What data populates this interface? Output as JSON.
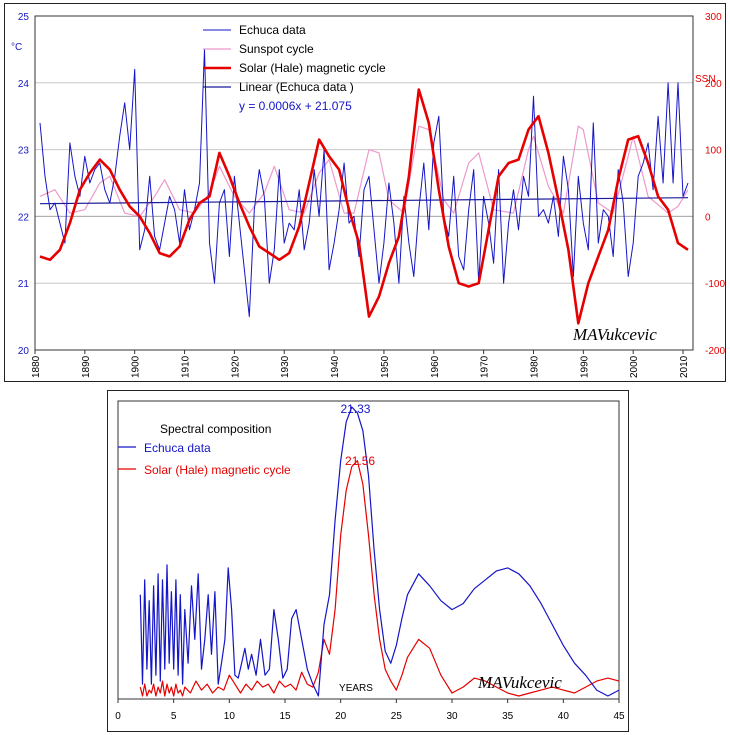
{
  "chart_data": [
    {
      "type": "line",
      "left_unit": "°C",
      "right_unit": "SSN",
      "xlim": [
        1880,
        2012
      ],
      "x_ticks": [
        "1880",
        "1890",
        "1900",
        "1910",
        "1920",
        "1930",
        "1940",
        "1950",
        "1960",
        "1970",
        "1980",
        "1990",
        "2000",
        "2010"
      ],
      "ylim_left": [
        20,
        25
      ],
      "y_ticks_left": [
        "20",
        "21",
        "22",
        "23",
        "24",
        "25"
      ],
      "ylim_right": [
        -200,
        300
      ],
      "y_ticks_right": [
        "-200",
        "-100",
        "0",
        "100",
        "200",
        "300"
      ],
      "legend": {
        "placement": "top-center",
        "entries": [
          "Echuca data",
          "Sunspot cycle",
          "Solar (Hale) magnetic cycle",
          "Linear (Echuca data )"
        ],
        "equation": "y = 0.0006x + 21.075"
      },
      "signature": "MAVukcevic",
      "colors": {
        "echuca": "#1515c8",
        "sunspot": "#ee99cc",
        "hale": "#e60000",
        "linear": "#1a1a9a",
        "right_axis": "#e60000"
      },
      "series": [
        {
          "name": "Echuca data",
          "axis": "left",
          "x": [
            1881,
            1882,
            1883,
            1884,
            1885,
            1886,
            1887,
            1888,
            1889,
            1890,
            1891,
            1892,
            1893,
            1894,
            1895,
            1896,
            1897,
            1898,
            1899,
            1900,
            1901,
            1902,
            1903,
            1904,
            1905,
            1906,
            1907,
            1908,
            1909,
            1910,
            1911,
            1912,
            1913,
            1914,
            1915,
            1916,
            1917,
            1918,
            1919,
            1920,
            1921,
            1922,
            1923,
            1924,
            1925,
            1926,
            1927,
            1928,
            1929,
            1930,
            1931,
            1932,
            1933,
            1934,
            1935,
            1936,
            1937,
            1938,
            1939,
            1940,
            1941,
            1942,
            1943,
            1944,
            1945,
            1946,
            1947,
            1948,
            1949,
            1950,
            1951,
            1952,
            1953,
            1954,
            1955,
            1956,
            1957,
            1958,
            1959,
            1960,
            1961,
            1962,
            1963,
            1964,
            1965,
            1966,
            1967,
            1968,
            1969,
            1970,
            1971,
            1972,
            1973,
            1974,
            1975,
            1976,
            1977,
            1978,
            1979,
            1980,
            1981,
            1982,
            1983,
            1984,
            1985,
            1986,
            1987,
            1988,
            1989,
            1990,
            1991,
            1992,
            1993,
            1994,
            1995,
            1996,
            1997,
            1998,
            1999,
            2000,
            2001,
            2002,
            2003,
            2004,
            2005,
            2006,
            2007,
            2008,
            2009,
            2010,
            2011
          ],
          "y": [
            23.4,
            22.6,
            22.1,
            22.2,
            21.9,
            21.6,
            23.1,
            22.6,
            22.3,
            22.9,
            22.5,
            22.7,
            22.8,
            22.4,
            22.2,
            22.6,
            23.2,
            23.7,
            23.0,
            24.2,
            21.5,
            21.8,
            22.6,
            21.7,
            21.5,
            21.9,
            22.3,
            22.1,
            21.6,
            22.4,
            21.8,
            22.1,
            22.5,
            24.5,
            21.6,
            21.0,
            22.2,
            22.4,
            21.4,
            22.6,
            21.9,
            21.2,
            20.5,
            22.1,
            22.7,
            22.3,
            21.0,
            21.5,
            22.7,
            21.6,
            21.9,
            21.8,
            22.4,
            21.5,
            21.9,
            22.7,
            22.0,
            23.0,
            21.2,
            21.6,
            22.1,
            22.8,
            21.9,
            22.0,
            21.4,
            22.4,
            22.6,
            21.8,
            21.0,
            21.6,
            22.5,
            21.9,
            21.0,
            22.3,
            21.6,
            21.1,
            22.1,
            22.8,
            21.8,
            23.1,
            23.5,
            22.0,
            21.7,
            22.6,
            21.4,
            21.2,
            22.1,
            22.7,
            21.0,
            22.3,
            21.9,
            21.3,
            22.7,
            21.0,
            21.9,
            22.4,
            21.8,
            22.6,
            22.3,
            23.8,
            22.0,
            22.1,
            21.9,
            22.3,
            21.7,
            22.9,
            22.4,
            21.1,
            22.6,
            21.9,
            21.5,
            23.4,
            21.6,
            22.1,
            22.0,
            21.4,
            22.7,
            22.2,
            21.1,
            21.6,
            22.6,
            22.8,
            23.1,
            22.4,
            23.5,
            22.5,
            24.0,
            22.5,
            24.0,
            22.3,
            22.5
          ]
        },
        {
          "name": "Sunspot cycle",
          "axis": "right",
          "x": [
            1881,
            1884,
            1887,
            1890,
            1893,
            1895,
            1898,
            1901,
            1904,
            1906,
            1909,
            1912,
            1915,
            1917,
            1920,
            1923,
            1926,
            1928,
            1931,
            1934,
            1937,
            1939,
            1942,
            1944,
            1947,
            1949,
            1951,
            1954,
            1957,
            1959,
            1962,
            1964,
            1967,
            1969,
            1972,
            1976,
            1979,
            1980,
            1983,
            1986,
            1989,
            1990,
            1993,
            1996,
            1999,
            2000,
            2003,
            2007,
            2009,
            2011
          ],
          "x_description": "year",
          "y": [
            30,
            40,
            5,
            10,
            50,
            60,
            5,
            0,
            30,
            55,
            10,
            5,
            35,
            75,
            30,
            5,
            35,
            75,
            10,
            5,
            65,
            85,
            5,
            5,
            100,
            95,
            25,
            5,
            135,
            130,
            25,
            5,
            80,
            95,
            10,
            5,
            100,
            120,
            45,
            5,
            135,
            130,
            20,
            5,
            90,
            120,
            30,
            5,
            15,
            40
          ]
        },
        {
          "name": "Solar (Hale) magnetic cycle",
          "axis": "right",
          "x": [
            1881,
            1883,
            1885,
            1887,
            1889,
            1891,
            1893,
            1895,
            1897,
            1899,
            1901,
            1903,
            1905,
            1907,
            1909,
            1911,
            1913,
            1915,
            1917,
            1919,
            1921,
            1923,
            1925,
            1927,
            1929,
            1931,
            1933,
            1935,
            1937,
            1939,
            1941,
            1943,
            1945,
            1947,
            1949,
            1951,
            1953,
            1955,
            1957,
            1959,
            1961,
            1963,
            1965,
            1967,
            1969,
            1971,
            1973,
            1975,
            1977,
            1979,
            1981,
            1983,
            1985,
            1987,
            1989,
            1991,
            1993,
            1995,
            1997,
            1999,
            2001,
            2003,
            2005,
            2007,
            2009,
            2011
          ],
          "y": [
            -60,
            -65,
            -50,
            -10,
            40,
            65,
            85,
            70,
            40,
            15,
            0,
            -25,
            -55,
            -60,
            -45,
            -5,
            20,
            30,
            95,
            60,
            20,
            -15,
            -45,
            -55,
            -65,
            -55,
            -15,
            50,
            115,
            90,
            70,
            10,
            -40,
            -150,
            -120,
            -70,
            -30,
            60,
            190,
            140,
            40,
            -45,
            -100,
            -105,
            -100,
            -20,
            60,
            80,
            85,
            130,
            150,
            95,
            25,
            -50,
            -160,
            -100,
            -60,
            -20,
            55,
            115,
            120,
            80,
            30,
            10,
            -40,
            -50
          ]
        },
        {
          "name": "Linear (Echuca data )",
          "axis": "left",
          "x": [
            1881,
            2011
          ],
          "y": [
            22.19,
            22.28
          ]
        }
      ]
    },
    {
      "type": "line",
      "title": "Spectral composition",
      "xlabel": "YEARS",
      "xlim": [
        0,
        45
      ],
      "x_ticks": [
        "0",
        "5",
        "10",
        "15",
        "20",
        "25",
        "30",
        "35",
        "40",
        "45"
      ],
      "ylim": [
        0,
        1
      ],
      "signature": "MAVukcevic",
      "annotations": [
        {
          "text": "21.33",
          "x": 21.33,
          "series": "Echuca data"
        },
        {
          "text": "21.56",
          "x": 21.56,
          "series": "Solar (Hale) magnetic cycle"
        }
      ],
      "colors": {
        "echuca": "#1515c8",
        "hale": "#e60000",
        "title": "#000000"
      },
      "series": [
        {
          "name": "Echuca data",
          "x": [
            2,
            2.2,
            2.4,
            2.6,
            2.8,
            3,
            3.2,
            3.4,
            3.6,
            3.8,
            4,
            4.2,
            4.4,
            4.6,
            4.8,
            5,
            5.2,
            5.4,
            5.6,
            5.8,
            6,
            6.3,
            6.6,
            6.9,
            7.2,
            7.5,
            7.8,
            8.1,
            8.4,
            8.7,
            9,
            9.3,
            9.6,
            9.9,
            10.2,
            10.5,
            10.8,
            11.1,
            11.4,
            11.7,
            12,
            12.4,
            12.8,
            13.2,
            13.6,
            14,
            14.4,
            14.8,
            15.2,
            15.6,
            16,
            16.5,
            17,
            17.5,
            18,
            18.5,
            19,
            19.5,
            20,
            20.5,
            21,
            21.5,
            22,
            22.5,
            23,
            23.5,
            24,
            24.5,
            25,
            25.5,
            26,
            27,
            28,
            29,
            30,
            31,
            32,
            33,
            34,
            35,
            36,
            37,
            38,
            39,
            40,
            41,
            42,
            43,
            44,
            45
          ],
          "y": [
            0.35,
            0.05,
            0.4,
            0.1,
            0.33,
            0.05,
            0.38,
            0.08,
            0.42,
            0.06,
            0.4,
            0.1,
            0.45,
            0.12,
            0.36,
            0.1,
            0.4,
            0.08,
            0.35,
            0.05,
            0.3,
            0.12,
            0.38,
            0.2,
            0.42,
            0.1,
            0.2,
            0.35,
            0.15,
            0.36,
            0.05,
            0.12,
            0.2,
            0.44,
            0.3,
            0.08,
            0.07,
            0.12,
            0.17,
            0.1,
            0.15,
            0.08,
            0.2,
            0.08,
            0.1,
            0.3,
            0.2,
            0.07,
            0.1,
            0.27,
            0.3,
            0.2,
            0.1,
            0.05,
            0.01,
            0.25,
            0.35,
            0.6,
            0.8,
            0.93,
            0.98,
            0.96,
            0.9,
            0.75,
            0.5,
            0.3,
            0.16,
            0.12,
            0.18,
            0.27,
            0.35,
            0.42,
            0.38,
            0.33,
            0.3,
            0.32,
            0.37,
            0.4,
            0.43,
            0.44,
            0.42,
            0.38,
            0.32,
            0.25,
            0.18,
            0.12,
            0.08,
            0.03,
            0.01,
            0.03
          ]
        },
        {
          "name": "Solar (Hale) magnetic cycle",
          "x": [
            2,
            2.2,
            2.4,
            2.6,
            2.8,
            3,
            3.2,
            3.4,
            3.6,
            3.8,
            4,
            4.2,
            4.4,
            4.6,
            4.8,
            5,
            5.2,
            5.4,
            5.6,
            5.8,
            6,
            6.5,
            7,
            7.5,
            8,
            8.5,
            9,
            9.5,
            10,
            10.5,
            11,
            11.5,
            12,
            12.5,
            13,
            13.5,
            14,
            14.5,
            15,
            15.5,
            16,
            16.5,
            17,
            17.5,
            18,
            18.5,
            19,
            19.5,
            20,
            20.5,
            21,
            21.5,
            22,
            22.5,
            23,
            23.5,
            24,
            24.5,
            25,
            25.5,
            26,
            27,
            28,
            29,
            30,
            31,
            32,
            33,
            34,
            35,
            36,
            37,
            38,
            39,
            40,
            41,
            42,
            43,
            44,
            45
          ],
          "y": [
            0.04,
            0.01,
            0.05,
            0.01,
            0.03,
            0.02,
            0.05,
            0.01,
            0.04,
            0.02,
            0.06,
            0.01,
            0.05,
            0.02,
            0.04,
            0.01,
            0.05,
            0.02,
            0.03,
            0.01,
            0.04,
            0.02,
            0.06,
            0.03,
            0.05,
            0.02,
            0.04,
            0.03,
            0.08,
            0.05,
            0.02,
            0.05,
            0.03,
            0.06,
            0.04,
            0.05,
            0.02,
            0.06,
            0.04,
            0.05,
            0.03,
            0.09,
            0.05,
            0.04,
            0.09,
            0.2,
            0.15,
            0.3,
            0.55,
            0.7,
            0.78,
            0.8,
            0.72,
            0.55,
            0.35,
            0.2,
            0.1,
            0.06,
            0.03,
            0.08,
            0.14,
            0.2,
            0.17,
            0.08,
            0.02,
            0.04,
            0.07,
            0.06,
            0.04,
            0.02,
            0.01,
            0.02,
            0.03,
            0.04,
            0.03,
            0.02,
            0.04,
            0.06,
            0.07,
            0.06
          ]
        }
      ]
    }
  ]
}
